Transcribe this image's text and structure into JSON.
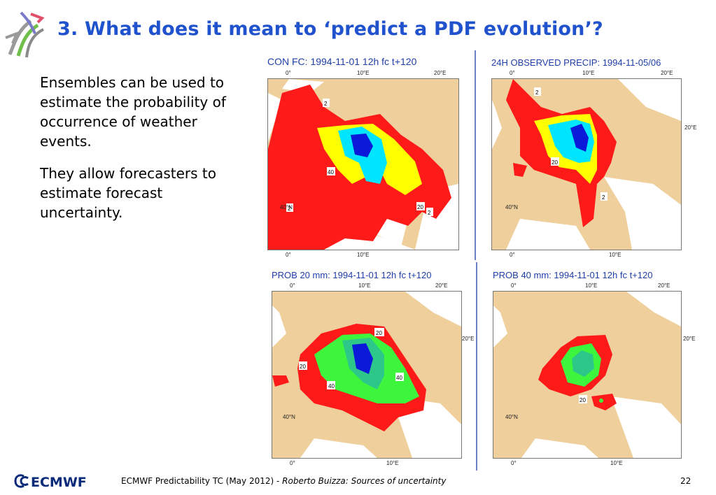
{
  "title": "3. What does it mean to ‘predict a PDF evolution’?",
  "body": {
    "para1": "Ensembles can be used to estimate the probability of occurrence of weather events.",
    "para2": "They allow forecasters to estimate forecast uncertainty."
  },
  "panels": {
    "p1": {
      "title": "CON FC: 1994-11-01 12h fc t+120",
      "contours": [
        "2",
        "40",
        "2",
        "20",
        "2"
      ]
    },
    "p2": {
      "title": "24H OBSERVED PRECIP: 1994-11-05/06",
      "contours": [
        "2",
        "20",
        "2"
      ]
    },
    "p3": {
      "title": "PROB 20 mm: 1994-11-01 12h fc t+120",
      "contours": [
        "20",
        "20",
        "40",
        "40"
      ]
    },
    "p4": {
      "title": "PROB 40 mm: 1994-11-01 12h fc t+120",
      "contours": [
        "20"
      ]
    }
  },
  "axes": {
    "lon0": "0°",
    "lon10": "10°E",
    "lon20": "20°E",
    "lat40": "40°N"
  },
  "colors": {
    "title": "#1f52cc",
    "land": "#efcf9c",
    "sea": "#ffffff",
    "red": "#ff1a1a",
    "yellow": "#ffff00",
    "cyan": "#00e5ff",
    "blue": "#0a1ad8",
    "green": "#3df53d",
    "teal": "#2ec78a"
  },
  "footer": {
    "logo": "ECMWF",
    "text": "ECMWF Predictability TC (May 2012) - ",
    "italic": "Roberto Buizza: Sources of uncertainty",
    "page": "22"
  }
}
